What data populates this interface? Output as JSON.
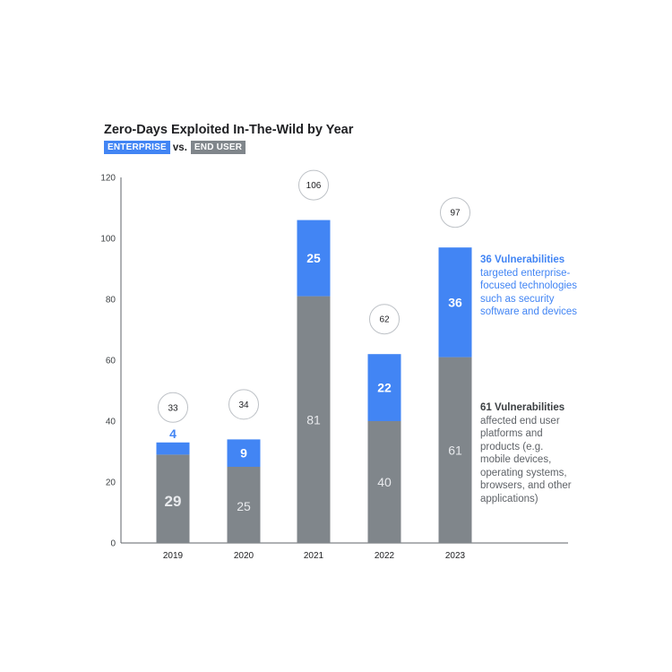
{
  "chart_data": {
    "type": "bar",
    "stacked": true,
    "title": "Zero-Days Exploited In-The-Wild by Year",
    "legend": {
      "enterprise_label": "ENTERPRISE",
      "vs_label": "vs.",
      "end_user_label": "END USER"
    },
    "categories": [
      "2019",
      "2020",
      "2021",
      "2022",
      "2023"
    ],
    "series": [
      {
        "name": "END USER",
        "color": "#80868b",
        "values": [
          29,
          25,
          81,
          40,
          61
        ]
      },
      {
        "name": "ENTERPRISE",
        "color": "#4285f4",
        "values": [
          4,
          9,
          25,
          22,
          36
        ]
      }
    ],
    "totals": [
      33,
      34,
      106,
      62,
      97
    ],
    "ylim": [
      0,
      120
    ],
    "yticks": [
      0,
      20,
      40,
      60,
      80,
      100,
      120
    ],
    "xlabel": "",
    "ylabel": "",
    "grid": false
  },
  "annotations": {
    "enterprise": {
      "head": "36 Vulnerabilities",
      "lines": [
        "targeted enterprise-",
        "focused technologies",
        "such as security",
        "software and devices"
      ]
    },
    "end_user": {
      "head": "61 Vulnerabilities",
      "lines": [
        "affected end user",
        "platforms and",
        "products (e.g.",
        "mobile devices,",
        "operating systems,",
        "browsers, and other",
        "applications)"
      ]
    }
  }
}
